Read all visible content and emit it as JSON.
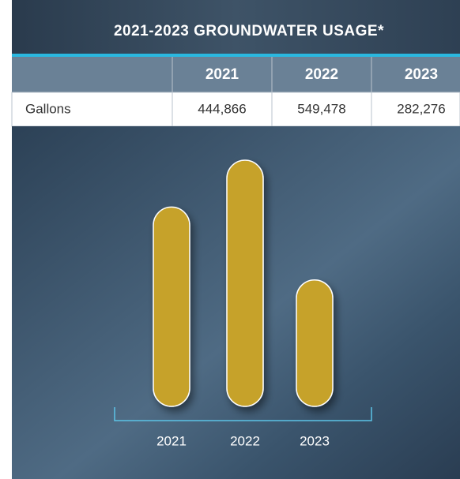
{
  "chart_data": {
    "type": "bar",
    "title": "2021-2023 GROUNDWATER USAGE*",
    "categories": [
      "2021",
      "2022",
      "2023"
    ],
    "series": [
      {
        "name": "Gallons",
        "color": "#c6a22c",
        "values": [
          444866,
          549478,
          282276
        ],
        "value_labels": [
          "444,866",
          "549,478",
          "282,276"
        ]
      }
    ]
  }
}
